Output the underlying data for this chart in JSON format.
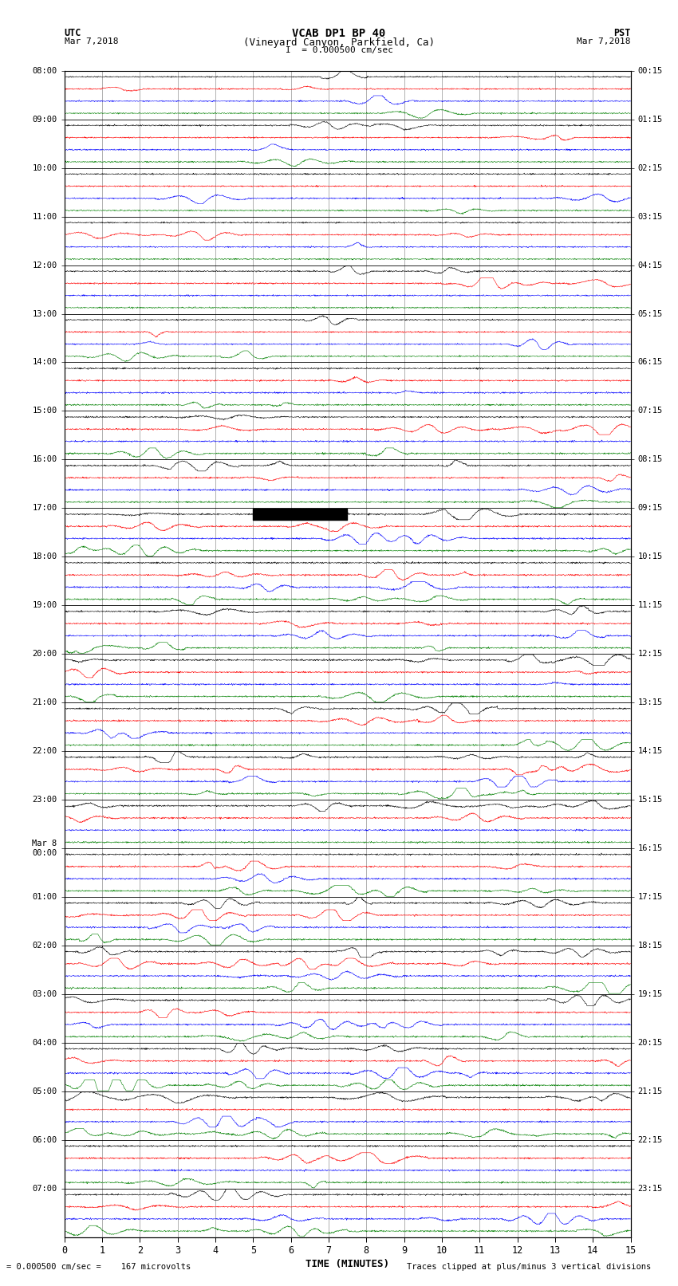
{
  "title_line1": "VCAB DP1 BP 40",
  "title_line2": "(Vineyard Canyon, Parkfield, Ca)",
  "left_label_top": "UTC",
  "left_label_date": "Mar 7,2018",
  "right_label_top": "PST",
  "right_label_date": "Mar 7,2018",
  "scale_text": "I  = 0.000500 cm/sec",
  "bottom_left": "= 0.000500 cm/sec =    167 microvolts",
  "bottom_right": "Traces clipped at plus/minus 3 vertical divisions",
  "xlabel": "TIME (MINUTES)",
  "utc_hour_labels": [
    "08:00",
    "09:00",
    "10:00",
    "11:00",
    "12:00",
    "13:00",
    "14:00",
    "15:00",
    "16:00",
    "17:00",
    "18:00",
    "19:00",
    "20:00",
    "21:00",
    "22:00",
    "23:00",
    "00:00",
    "01:00",
    "02:00",
    "03:00",
    "04:00",
    "05:00",
    "06:00",
    "07:00"
  ],
  "utc_hour_labels_special": [
    15
  ],
  "pst_hour_labels": [
    "00:15",
    "01:15",
    "02:15",
    "03:15",
    "04:15",
    "05:15",
    "06:15",
    "07:15",
    "08:15",
    "09:15",
    "10:15",
    "11:15",
    "12:15",
    "13:15",
    "14:15",
    "15:15",
    "16:15",
    "17:15",
    "18:15",
    "19:15",
    "20:15",
    "21:15",
    "22:15",
    "23:15"
  ],
  "n_hours": 24,
  "n_channels": 4,
  "colors": [
    "black",
    "red",
    "blue",
    "green"
  ],
  "xmin": 0,
  "xmax": 15,
  "figsize": [
    8.5,
    16.13
  ],
  "dpi": 100,
  "bg_color": "white",
  "grid_color": "#777777"
}
